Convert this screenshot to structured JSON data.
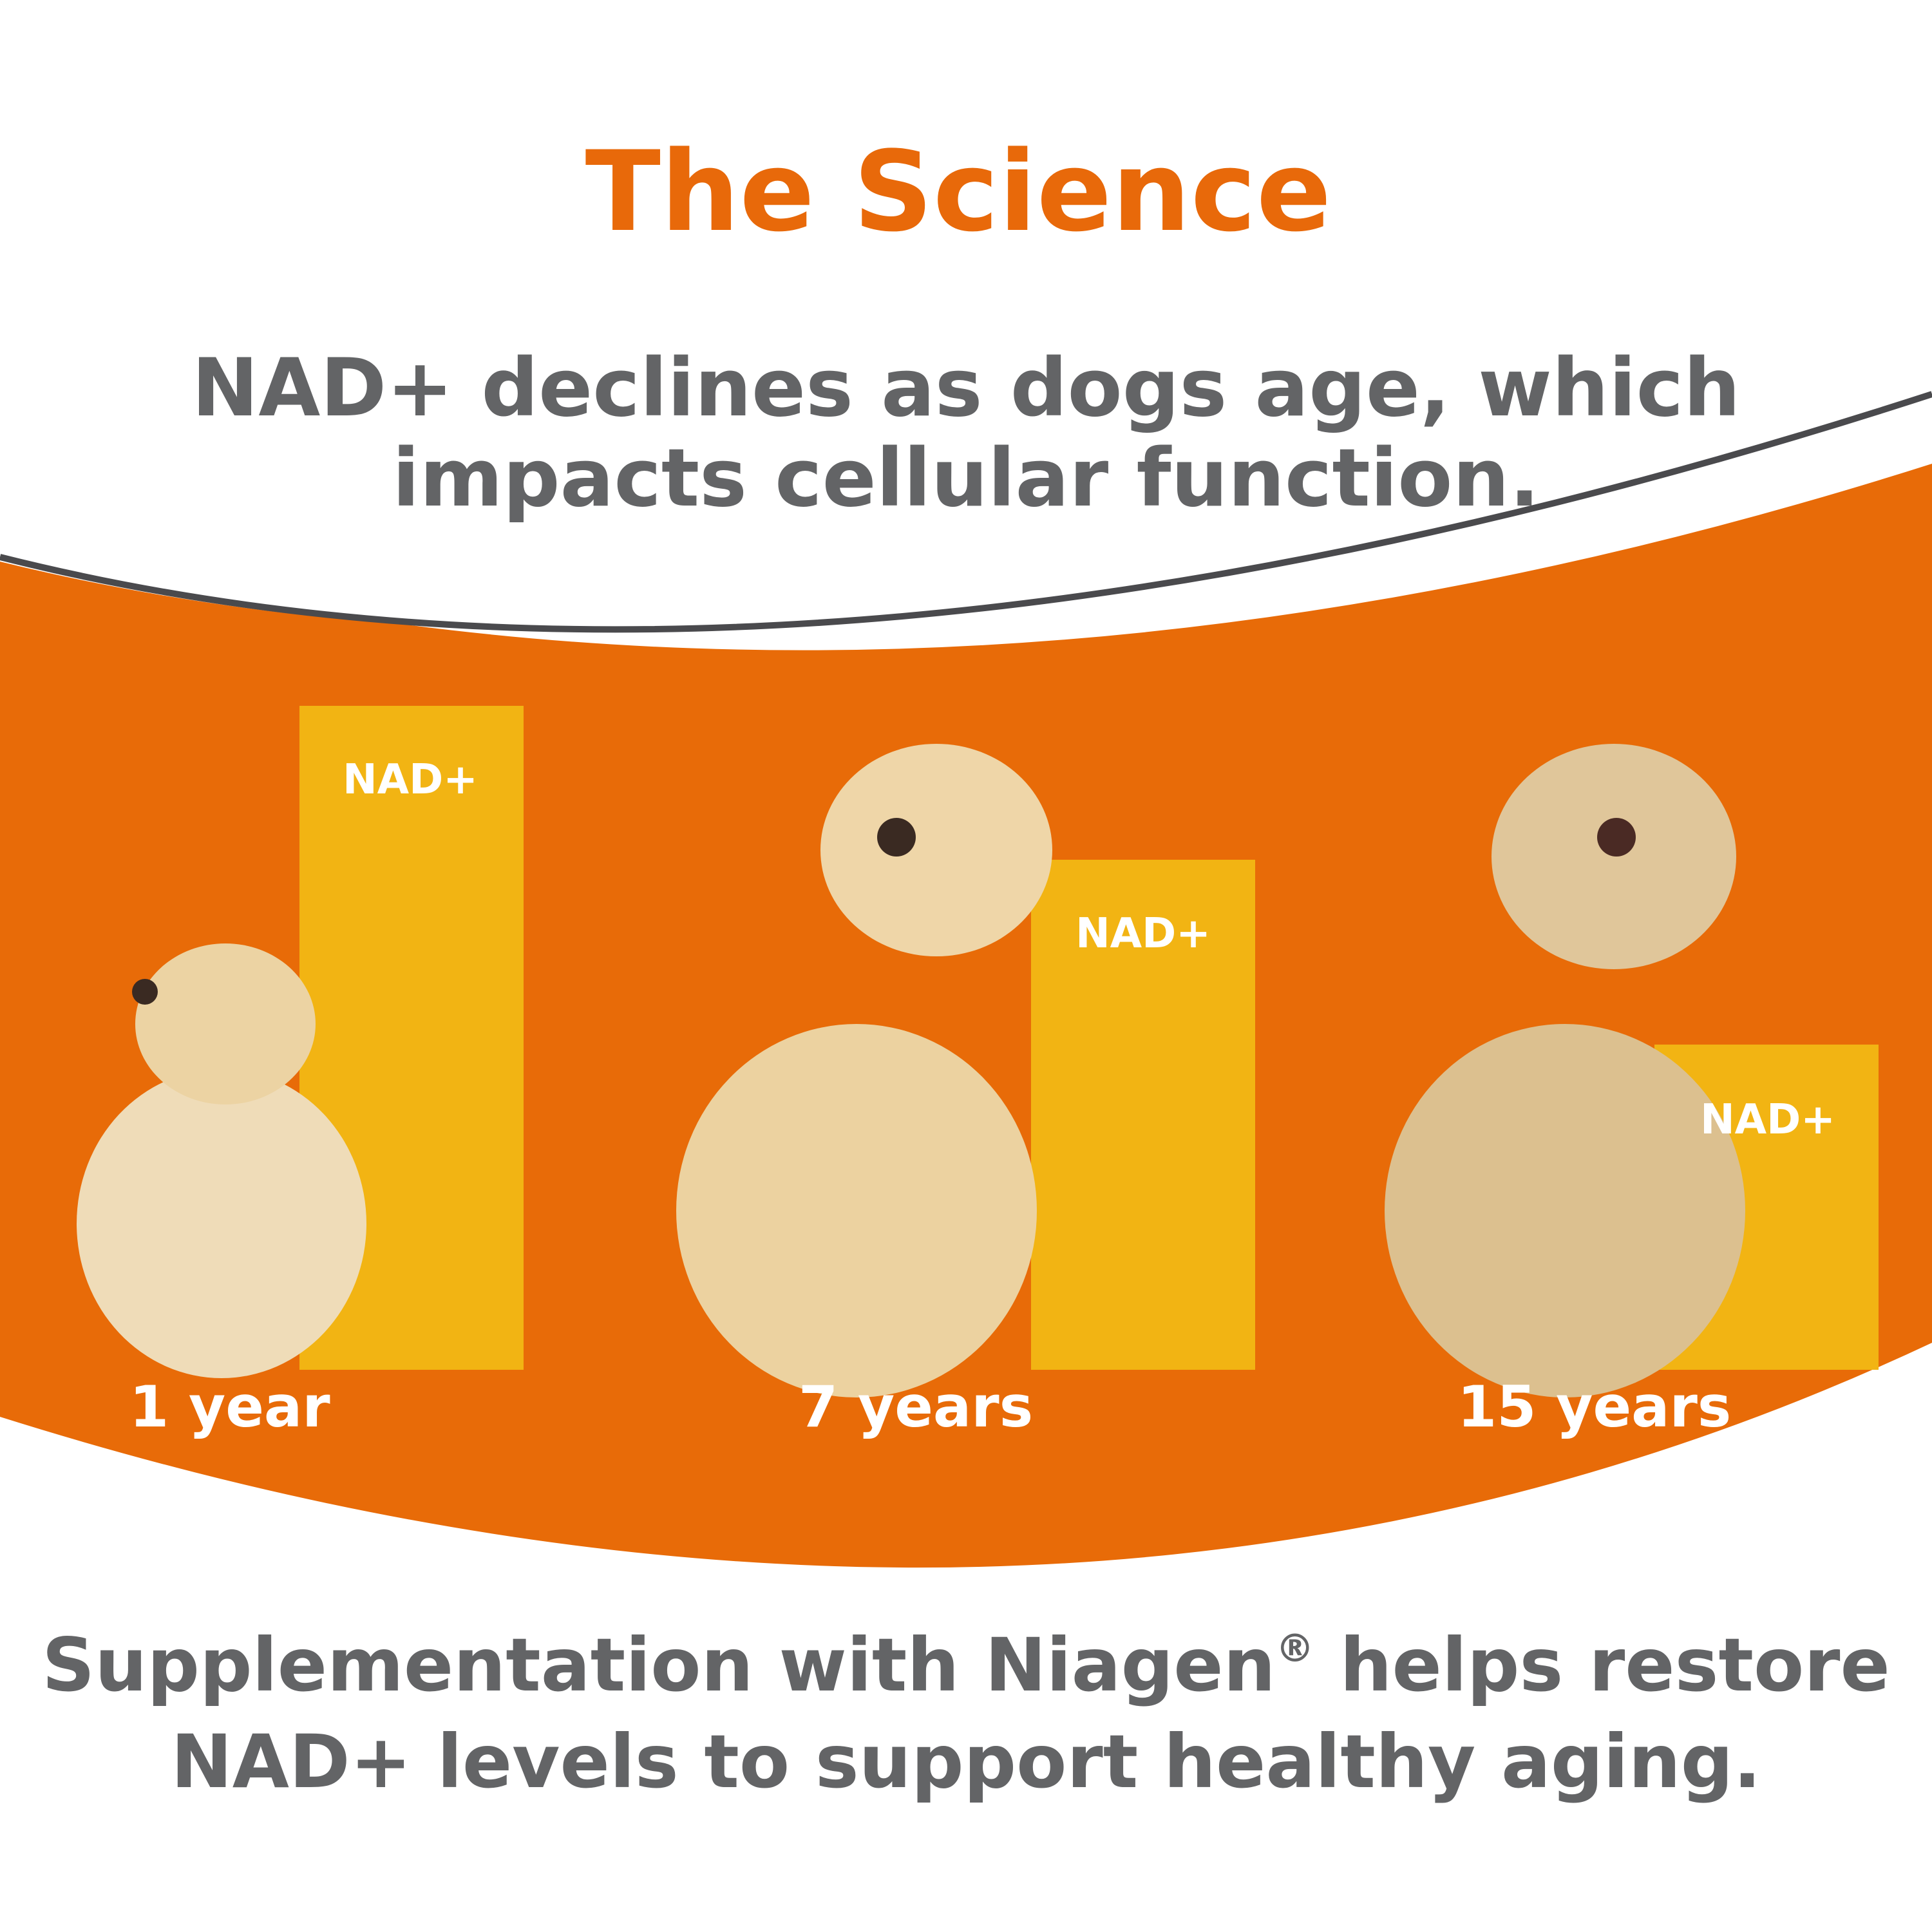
{
  "header": {
    "title": "The Science",
    "subtitle": [
      "NAD+ declines as dogs age, which",
      "impacts cellular function."
    ]
  },
  "panels": [
    {
      "bar_label": "NAD+",
      "age": "1 year"
    },
    {
      "bar_label": "NAD+",
      "age": "7 years"
    },
    {
      "bar_label": "NAD+",
      "age": "15 years"
    }
  ],
  "footer": {
    "line1": [
      "Supplementation with Niagen",
      "®",
      " helps restore"
    ],
    "line2": "NAD+ levels to support healthy aging."
  }
}
